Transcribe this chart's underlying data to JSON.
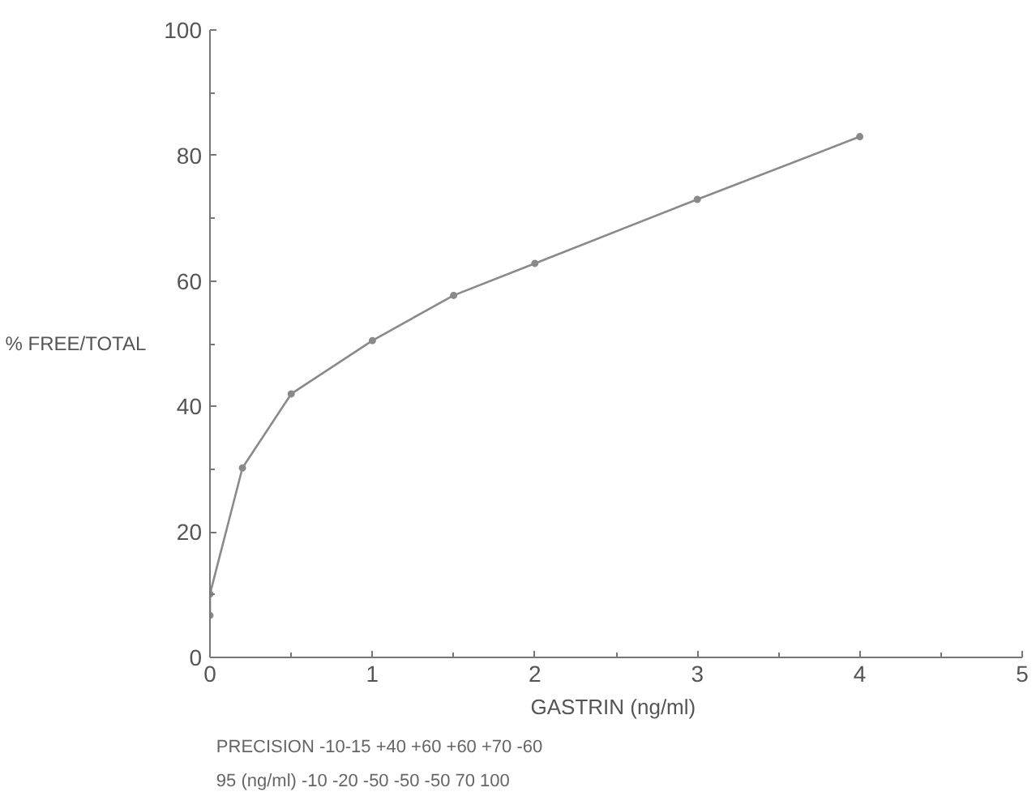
{
  "chart_data": {
    "type": "line",
    "xlabel": "GASTRIN  (ng/ml)",
    "ylabel": "% FREE/TOTAL",
    "x": [
      0,
      0,
      0.2,
      0.5,
      1,
      1.5,
      2,
      3,
      4
    ],
    "series": [
      {
        "color": "#8a8a8a",
        "values": [
          6.7,
          10.1,
          30.2,
          42,
          50.5,
          57.7,
          62.8,
          73,
          83
        ]
      }
    ],
    "xlim": [
      0,
      5
    ],
    "xticks": [
      0,
      1,
      2,
      3,
      4,
      5
    ],
    "ylim": [
      0,
      100
    ],
    "yticks": [
      0,
      20,
      40,
      60,
      80,
      100
    ],
    "grid": false,
    "marker": "circle",
    "line_style": "solid",
    "annotations": [
      "PRECISION -10-15 +40 +60 +60 +70 -60",
      "95 (ng/ml) -10 -20 -50 -50 -50 70 100"
    ]
  }
}
